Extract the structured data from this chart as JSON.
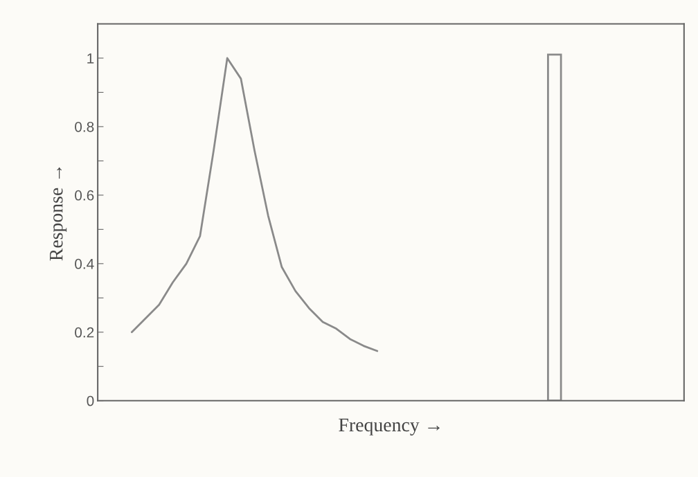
{
  "chart_data": {
    "type": "line",
    "xlabel": "Frequency →",
    "ylabel": "Response →",
    "categories": [
      null,
      null,
      null,
      null,
      null,
      null,
      null,
      null,
      null,
      null,
      null,
      null,
      null,
      null,
      null,
      null,
      null,
      null,
      null,
      null,
      null,
      null,
      null,
      null,
      null,
      null,
      null,
      null,
      null,
      null,
      null,
      null,
      null,
      null,
      null,
      null,
      null,
      null,
      null,
      null,
      null,
      null,
      null
    ],
    "series": [
      {
        "color": "#8a8a8a",
        "values": [
          null,
          null,
          0.2,
          0.24,
          0.28,
          0.345,
          0.4,
          0.48,
          0.73,
          1.0,
          0.94,
          0.73,
          0.54,
          0.39,
          0.32,
          0.27,
          0.23,
          0.21,
          0.18,
          0.16,
          0.145,
          null,
          null,
          null,
          null,
          null,
          null,
          null,
          null,
          null,
          null,
          null,
          null,
          null,
          null,
          null,
          null,
          null,
          null,
          null,
          null,
          null,
          null
        ]
      },
      {
        "type": "bar",
        "color": "#8a8a8a",
        "values": [
          null,
          null,
          null,
          null,
          null,
          null,
          null,
          null,
          null,
          null,
          null,
          null,
          null,
          null,
          null,
          null,
          null,
          null,
          null,
          null,
          null,
          null,
          null,
          null,
          null,
          null,
          null,
          null,
          null,
          null,
          null,
          null,
          null,
          1.01,
          null,
          null,
          null,
          null,
          null,
          null,
          null,
          null,
          null
        ]
      }
    ],
    "ylim": [
      0,
      1.1
    ],
    "yticks": [
      0,
      {
        "value": 0.1,
        "label": null
      },
      {
        "value": 0.2,
        "label": "0.2"
      },
      {
        "value": 0.3,
        "label": null
      },
      {
        "value": 0.4,
        "label": "0.4"
      },
      {
        "value": 0.5,
        "label": null
      },
      {
        "value": 0.6,
        "label": "0.6"
      },
      {
        "value": 0.7,
        "label": null
      },
      {
        "value": 0.8,
        "label": "0.8"
      },
      {
        "value": 0.9,
        "label": null
      },
      1
    ],
    "tick_labels": "y",
    "grid": false,
    "legend": false
  }
}
